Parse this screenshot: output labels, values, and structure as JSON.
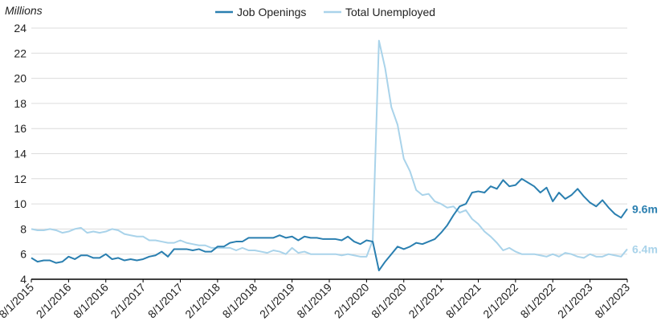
{
  "chart_data": {
    "type": "line",
    "unit_label": "Millions",
    "ylim": [
      4,
      24
    ],
    "yticks": [
      4,
      6,
      8,
      10,
      12,
      14,
      16,
      18,
      20,
      22,
      24
    ],
    "x_tick_labels": [
      "8/1/2015",
      "2/1/2016",
      "8/1/2016",
      "2/1/2017",
      "8/1/2017",
      "2/1/2018",
      "8/1/2018",
      "2/1/2019",
      "8/1/2019",
      "2/1/2020",
      "8/1/2020",
      "2/1/2021",
      "8/1/2021",
      "2/1/2022",
      "8/1/2022",
      "2/1/2023",
      "8/1/2023"
    ],
    "grid": "horizontal",
    "legend_position": "top",
    "series": [
      {
        "name": "Job Openings",
        "color": "#2a7fb0",
        "end_label": "9.6m",
        "values": [
          5.7,
          5.4,
          5.5,
          5.5,
          5.3,
          5.4,
          5.8,
          5.6,
          5.9,
          5.9,
          5.7,
          5.7,
          6.0,
          5.6,
          5.7,
          5.5,
          5.6,
          5.5,
          5.6,
          5.8,
          5.9,
          6.2,
          5.8,
          6.4,
          6.4,
          6.4,
          6.3,
          6.4,
          6.2,
          6.2,
          6.6,
          6.6,
          6.9,
          7.0,
          7.0,
          7.3,
          7.3,
          7.3,
          7.3,
          7.3,
          7.5,
          7.3,
          7.4,
          7.1,
          7.4,
          7.3,
          7.3,
          7.2,
          7.2,
          7.2,
          7.1,
          7.4,
          7.0,
          6.8,
          7.1,
          7.0,
          4.7,
          5.4,
          6.0,
          6.6,
          6.4,
          6.6,
          6.9,
          6.8,
          7.0,
          7.2,
          7.7,
          8.3,
          9.1,
          9.8,
          10.0,
          10.9,
          11.0,
          10.9,
          11.4,
          11.2,
          11.9,
          11.4,
          11.5,
          12.0,
          11.7,
          11.4,
          10.9,
          11.3,
          10.2,
          10.9,
          10.4,
          10.7,
          11.2,
          10.6,
          10.1,
          9.8,
          10.3,
          9.7,
          9.2,
          8.9,
          9.6
        ]
      },
      {
        "name": "Total Unemployed",
        "color": "#a9d3ea",
        "end_label": "6.4m",
        "values": [
          8.0,
          7.9,
          7.9,
          8.0,
          7.9,
          7.7,
          7.8,
          8.0,
          8.1,
          7.7,
          7.8,
          7.7,
          7.8,
          8.0,
          7.9,
          7.6,
          7.5,
          7.4,
          7.4,
          7.1,
          7.1,
          7.0,
          6.9,
          6.9,
          7.1,
          6.9,
          6.8,
          6.7,
          6.7,
          6.5,
          6.5,
          6.5,
          6.5,
          6.3,
          6.5,
          6.3,
          6.3,
          6.2,
          6.1,
          6.3,
          6.2,
          6.0,
          6.5,
          6.1,
          6.2,
          6.0,
          6.0,
          6.0,
          6.0,
          6.0,
          5.9,
          6.0,
          5.9,
          5.8,
          5.8,
          7.1,
          23.0,
          20.8,
          17.7,
          16.3,
          13.6,
          12.6,
          11.1,
          10.7,
          10.8,
          10.2,
          10.0,
          9.7,
          9.8,
          9.3,
          9.5,
          8.8,
          8.4,
          7.8,
          7.4,
          6.9,
          6.3,
          6.5,
          6.2,
          6.0,
          6.0,
          6.0,
          5.9,
          5.8,
          6.0,
          5.8,
          6.1,
          6.0,
          5.8,
          5.7,
          6.0,
          5.8,
          5.8,
          6.0,
          5.9,
          5.8,
          6.4
        ]
      }
    ]
  }
}
